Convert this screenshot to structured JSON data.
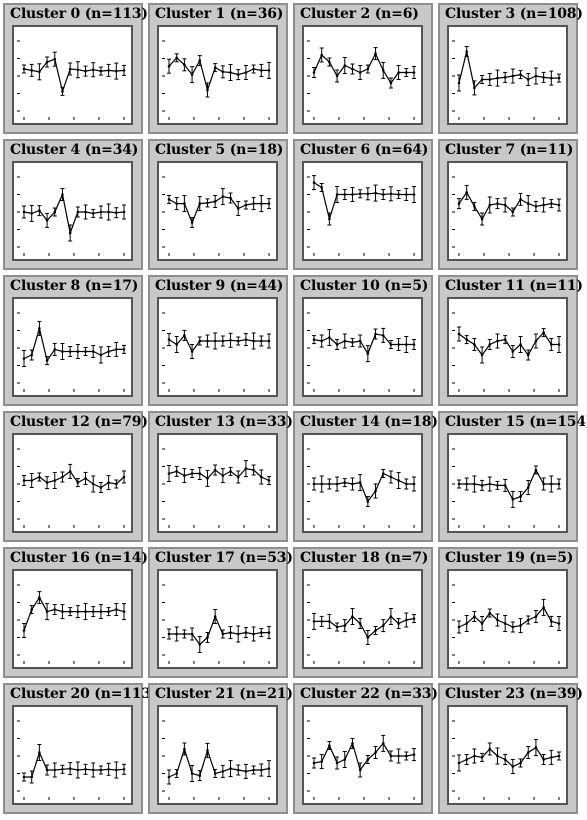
{
  "colors": {
    "panel_bg": "#c8c8c8",
    "plot_bg": "#ffffff",
    "ink": "#000000"
  },
  "chart_data": [
    {
      "type": "line",
      "title": "Cluster 0 (n=113)",
      "series": [
        {
          "values": [
            0.6,
            0.58,
            0.56,
            0.7,
            0.74,
            0.28,
            0.6,
            0.59,
            0.57,
            0.59,
            0.57,
            0.58,
            0.57,
            0.58
          ]
        }
      ]
    },
    {
      "type": "line",
      "title": "Cluster 1 (n=36)",
      "series": [
        {
          "values": [
            0.64,
            0.76,
            0.66,
            0.52,
            0.72,
            0.3,
            0.62,
            0.56,
            0.55,
            0.52,
            0.55,
            0.6,
            0.58,
            0.58
          ]
        }
      ]
    },
    {
      "type": "line",
      "title": "Cluster 2 (n=6)",
      "series": [
        {
          "values": [
            0.55,
            0.8,
            0.7,
            0.5,
            0.65,
            0.6,
            0.55,
            0.6,
            0.82,
            0.58,
            0.4,
            0.55,
            0.55,
            0.55
          ]
        }
      ]
    },
    {
      "type": "line",
      "title": "Cluster 3 (n=108)",
      "series": [
        {
          "values": [
            0.4,
            0.85,
            0.33,
            0.45,
            0.45,
            0.47,
            0.48,
            0.5,
            0.52,
            0.45,
            0.5,
            0.48,
            0.47,
            0.47
          ]
        }
      ]
    },
    {
      "type": "line",
      "title": "Cluster 4 (n=34)",
      "series": [
        {
          "values": [
            0.5,
            0.48,
            0.52,
            0.38,
            0.5,
            0.75,
            0.2,
            0.5,
            0.5,
            0.48,
            0.5,
            0.5,
            0.49,
            0.5
          ]
        }
      ]
    },
    {
      "type": "line",
      "title": "Cluster 5 (n=18)",
      "series": [
        {
          "values": [
            0.68,
            0.62,
            0.62,
            0.35,
            0.62,
            0.63,
            0.65,
            0.72,
            0.7,
            0.55,
            0.6,
            0.62,
            0.62,
            0.62
          ]
        }
      ]
    },
    {
      "type": "line",
      "title": "Cluster 6 (n=64)",
      "series": [
        {
          "values": [
            0.92,
            0.85,
            0.4,
            0.75,
            0.75,
            0.75,
            0.76,
            0.76,
            0.77,
            0.75,
            0.76,
            0.75,
            0.75,
            0.75
          ]
        }
      ]
    },
    {
      "type": "line",
      "title": "Cluster 7 (n=11)",
      "series": [
        {
          "values": [
            0.62,
            0.78,
            0.58,
            0.4,
            0.6,
            0.62,
            0.6,
            0.5,
            0.68,
            0.62,
            0.58,
            0.6,
            0.62,
            0.6
          ]
        }
      ]
    },
    {
      "type": "line",
      "title": "Cluster 8 (n=17)",
      "series": [
        {
          "values": [
            0.35,
            0.4,
            0.78,
            0.32,
            0.48,
            0.45,
            0.45,
            0.45,
            0.45,
            0.45,
            0.4,
            0.45,
            0.48,
            0.48
          ]
        }
      ]
    },
    {
      "type": "line",
      "title": "Cluster 9 (n=44)",
      "series": [
        {
          "values": [
            0.62,
            0.55,
            0.68,
            0.45,
            0.6,
            0.6,
            0.6,
            0.6,
            0.61,
            0.6,
            0.62,
            0.6,
            0.6,
            0.6
          ]
        }
      ]
    },
    {
      "type": "line",
      "title": "Cluster 10 (n=5)",
      "series": [
        {
          "values": [
            0.62,
            0.6,
            0.65,
            0.55,
            0.6,
            0.58,
            0.6,
            0.42,
            0.7,
            0.68,
            0.55,
            0.55,
            0.55,
            0.55
          ]
        }
      ]
    },
    {
      "type": "line",
      "title": "Cluster 11 (n=11)",
      "series": [
        {
          "values": [
            0.7,
            0.62,
            0.55,
            0.4,
            0.55,
            0.6,
            0.62,
            0.45,
            0.55,
            0.4,
            0.6,
            0.72,
            0.55,
            0.55
          ]
        }
      ]
    },
    {
      "type": "line",
      "title": "Cluster 12 (n=79)",
      "series": [
        {
          "values": [
            0.55,
            0.55,
            0.6,
            0.52,
            0.55,
            0.6,
            0.68,
            0.52,
            0.58,
            0.5,
            0.45,
            0.52,
            0.5,
            0.6
          ]
        }
      ]
    },
    {
      "type": "line",
      "title": "Cluster 13 (n=33)",
      "series": [
        {
          "values": [
            0.65,
            0.68,
            0.62,
            0.65,
            0.65,
            0.58,
            0.7,
            0.62,
            0.68,
            0.6,
            0.72,
            0.7,
            0.6,
            0.55
          ]
        }
      ]
    },
    {
      "type": "line",
      "title": "Cluster 14 (n=18)",
      "series": [
        {
          "values": [
            0.5,
            0.5,
            0.5,
            0.5,
            0.52,
            0.5,
            0.52,
            0.25,
            0.4,
            0.65,
            0.6,
            0.55,
            0.5,
            0.5
          ]
        }
      ]
    },
    {
      "type": "line",
      "title": "Cluster 15 (n=154)",
      "series": [
        {
          "values": [
            0.5,
            0.5,
            0.5,
            0.48,
            0.5,
            0.48,
            0.48,
            0.28,
            0.32,
            0.45,
            0.7,
            0.5,
            0.5,
            0.5
          ]
        }
      ]
    },
    {
      "type": "line",
      "title": "Cluster 16 (n=14)",
      "series": [
        {
          "values": [
            0.35,
            0.65,
            0.82,
            0.62,
            0.65,
            0.62,
            0.62,
            0.62,
            0.62,
            0.62,
            0.62,
            0.62,
            0.65,
            0.62
          ]
        }
      ]
    },
    {
      "type": "line",
      "title": "Cluster 17 (n=53)",
      "series": [
        {
          "values": [
            0.3,
            0.3,
            0.3,
            0.3,
            0.15,
            0.25,
            0.55,
            0.3,
            0.32,
            0.3,
            0.32,
            0.3,
            0.32,
            0.32
          ]
        }
      ]
    },
    {
      "type": "line",
      "title": "Cluster 18 (n=7)",
      "series": [
        {
          "values": [
            0.48,
            0.48,
            0.48,
            0.4,
            0.42,
            0.55,
            0.45,
            0.25,
            0.35,
            0.42,
            0.55,
            0.45,
            0.5,
            0.52
          ]
        }
      ]
    },
    {
      "type": "line",
      "title": "Cluster 19 (n=5)",
      "series": [
        {
          "values": [
            0.4,
            0.45,
            0.55,
            0.45,
            0.6,
            0.5,
            0.45,
            0.4,
            0.42,
            0.5,
            0.55,
            0.68,
            0.48,
            0.45
          ]
        }
      ]
    },
    {
      "type": "line",
      "title": "Cluster 20 (n=113)",
      "series": [
        {
          "values": [
            0.2,
            0.2,
            0.55,
            0.3,
            0.3,
            0.31,
            0.32,
            0.3,
            0.31,
            0.3,
            0.3,
            0.31,
            0.3,
            0.31
          ]
        }
      ]
    },
    {
      "type": "line",
      "title": "Cluster 21 (n=21)",
      "series": [
        {
          "values": [
            0.2,
            0.25,
            0.6,
            0.25,
            0.22,
            0.58,
            0.25,
            0.28,
            0.32,
            0.3,
            0.28,
            0.3,
            0.3,
            0.32
          ]
        }
      ]
    },
    {
      "type": "line",
      "title": "Cluster 22 (n=33)",
      "series": [
        {
          "values": [
            0.4,
            0.42,
            0.65,
            0.4,
            0.45,
            0.68,
            0.3,
            0.45,
            0.55,
            0.68,
            0.5,
            0.5,
            0.5,
            0.52
          ]
        }
      ]
    },
    {
      "type": "line",
      "title": "Cluster 23 (n=39)",
      "series": [
        {
          "values": [
            0.4,
            0.45,
            0.5,
            0.48,
            0.6,
            0.5,
            0.45,
            0.35,
            0.4,
            0.55,
            0.62,
            0.45,
            0.48,
            0.5
          ]
        }
      ]
    }
  ]
}
